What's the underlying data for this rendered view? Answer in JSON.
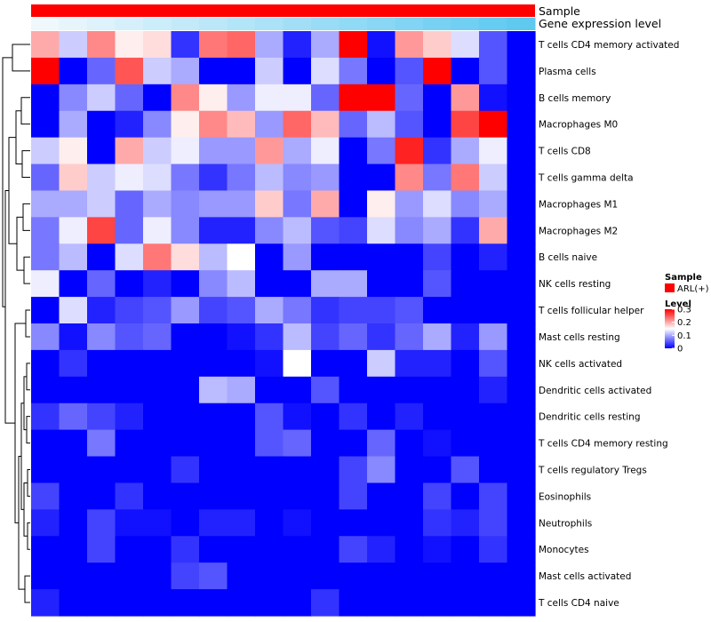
{
  "chart_data": {
    "type": "heatmap",
    "title": "",
    "rows": [
      "T cells CD4 memory activated",
      "Plasma cells",
      "B cells memory",
      "Macrophages M0",
      "T cells CD8",
      "T cells gamma delta",
      "Macrophages M1",
      "Macrophages M2",
      "B cells naive",
      "NK cells resting",
      "T cells follicular helper",
      "Mast cells resting",
      "NK cells activated",
      "Dendritic cells activated",
      "Dendritic cells resting",
      "T cells CD4 memory resting",
      "T cells regulatory  Tregs",
      "Eosinophils",
      "Neutrophils",
      "Monocytes",
      "Mast cells activated",
      "T cells CD4 naive"
    ],
    "n_columns": 18,
    "values": [
      [
        0.2,
        0.12,
        0.22,
        0.16,
        0.17,
        0.03,
        0.23,
        0.24,
        0.1,
        0.02,
        0.1,
        0.3,
        0.01,
        0.21,
        0.18,
        0.13,
        0.05,
        0.0
      ],
      [
        0.3,
        0.0,
        0.06,
        0.25,
        0.12,
        0.1,
        0.0,
        0.0,
        0.12,
        0.0,
        0.13,
        0.07,
        0.0,
        0.05,
        0.3,
        0.0,
        0.05,
        0.0
      ],
      [
        0.0,
        0.08,
        0.12,
        0.06,
        0.0,
        0.22,
        0.16,
        0.09,
        0.14,
        0.14,
        0.06,
        0.3,
        0.3,
        0.06,
        0.0,
        0.21,
        0.01,
        0.0
      ],
      [
        0.0,
        0.1,
        0.0,
        0.02,
        0.08,
        0.16,
        0.22,
        0.19,
        0.09,
        0.24,
        0.19,
        0.06,
        0.11,
        0.05,
        0.0,
        0.26,
        0.3,
        0.0
      ],
      [
        0.12,
        0.16,
        0.0,
        0.2,
        0.12,
        0.14,
        0.09,
        0.09,
        0.21,
        0.1,
        0.14,
        0.0,
        0.07,
        0.28,
        0.03,
        0.1,
        0.14,
        0.0
      ],
      [
        0.06,
        0.18,
        0.12,
        0.14,
        0.13,
        0.07,
        0.03,
        0.07,
        0.11,
        0.08,
        0.09,
        0.0,
        0.0,
        0.22,
        0.07,
        0.23,
        0.12,
        0.0
      ],
      [
        0.1,
        0.1,
        0.12,
        0.06,
        0.1,
        0.08,
        0.09,
        0.09,
        0.18,
        0.07,
        0.2,
        0.0,
        0.16,
        0.09,
        0.13,
        0.08,
        0.1,
        0.0
      ],
      [
        0.07,
        0.14,
        0.26,
        0.06,
        0.14,
        0.08,
        0.02,
        0.02,
        0.08,
        0.11,
        0.05,
        0.04,
        0.13,
        0.08,
        0.1,
        0.03,
        0.2,
        0.0
      ],
      [
        0.07,
        0.11,
        0.0,
        0.13,
        0.23,
        0.17,
        0.11,
        0.15,
        0.0,
        0.09,
        0.0,
        0.0,
        0.0,
        0.0,
        0.04,
        0.0,
        0.02,
        0.0
      ],
      [
        0.14,
        0.0,
        0.06,
        0.0,
        0.02,
        0.0,
        0.08,
        0.11,
        0.0,
        0.0,
        0.1,
        0.1,
        0.0,
        0.0,
        0.05,
        0.0,
        0.0,
        0.0
      ],
      [
        0.0,
        0.13,
        0.02,
        0.04,
        0.05,
        0.09,
        0.04,
        0.05,
        0.1,
        0.07,
        0.03,
        0.04,
        0.04,
        0.05,
        0.0,
        0.0,
        0.0,
        0.0
      ],
      [
        0.08,
        0.01,
        0.08,
        0.05,
        0.06,
        0.0,
        0.0,
        0.01,
        0.03,
        0.11,
        0.04,
        0.06,
        0.03,
        0.06,
        0.1,
        0.02,
        0.09,
        0.0
      ],
      [
        0.0,
        0.03,
        0.0,
        0.0,
        0.0,
        0.0,
        0.0,
        0.0,
        0.01,
        0.15,
        0.0,
        0.0,
        0.12,
        0.02,
        0.02,
        0.0,
        0.05,
        0.0
      ],
      [
        0.0,
        0.0,
        0.0,
        0.0,
        0.0,
        0.0,
        0.11,
        0.1,
        0.0,
        0.0,
        0.05,
        0.0,
        0.0,
        0.0,
        0.0,
        0.0,
        0.02,
        0.0
      ],
      [
        0.03,
        0.06,
        0.04,
        0.02,
        0.0,
        0.0,
        0.0,
        0.0,
        0.05,
        0.01,
        0.0,
        0.03,
        0.0,
        0.02,
        0.0,
        0.0,
        0.0,
        0.0
      ],
      [
        0.0,
        0.0,
        0.07,
        0.0,
        0.0,
        0.0,
        0.0,
        0.0,
        0.05,
        0.06,
        0.0,
        0.0,
        0.06,
        0.0,
        0.01,
        0.0,
        0.0,
        0.0
      ],
      [
        0.0,
        0.0,
        0.0,
        0.0,
        0.0,
        0.03,
        0.0,
        0.0,
        0.0,
        0.0,
        0.0,
        0.04,
        0.08,
        0.0,
        0.0,
        0.05,
        0.0,
        0.0
      ],
      [
        0.04,
        0.0,
        0.0,
        0.03,
        0.0,
        0.0,
        0.0,
        0.0,
        0.0,
        0.0,
        0.0,
        0.04,
        0.0,
        0.0,
        0.04,
        0.0,
        0.04,
        0.0
      ],
      [
        0.02,
        0.0,
        0.04,
        0.01,
        0.01,
        0.0,
        0.02,
        0.02,
        0.0,
        0.01,
        0.0,
        0.0,
        0.0,
        0.0,
        0.03,
        0.02,
        0.04,
        0.0
      ],
      [
        0.0,
        0.0,
        0.04,
        0.0,
        0.0,
        0.03,
        0.0,
        0.0,
        0.0,
        0.0,
        0.0,
        0.04,
        0.02,
        0.0,
        0.01,
        0.0,
        0.03,
        0.0
      ],
      [
        0.0,
        0.0,
        0.0,
        0.0,
        0.0,
        0.04,
        0.05,
        0.0,
        0.0,
        0.0,
        0.0,
        0.0,
        0.0,
        0.0,
        0.0,
        0.0,
        0.0,
        0.0
      ],
      [
        0.02,
        0.0,
        0.0,
        0.0,
        0.0,
        0.0,
        0.0,
        0.0,
        0.0,
        0.0,
        0.03,
        0.0,
        0.0,
        0.0,
        0.0,
        0.0,
        0.0,
        0.0
      ]
    ],
    "column_annotations": [
      {
        "name": "Sample",
        "color": "#ff0000"
      },
      {
        "name": "Gene expression level",
        "gradient": [
          "#eef8fd",
          "#5fc9f0"
        ]
      }
    ],
    "color_scale": {
      "colors": [
        "#0000ff",
        "#ffffff",
        "#ff0000"
      ],
      "breaks": [
        0,
        0.15,
        0.3
      ],
      "range": [
        0,
        0.3
      ]
    },
    "legend": {
      "sample_title": "Sample",
      "sample_entry": "ARL(+)",
      "sample_color": "#ff0000",
      "level_title": "Level",
      "level_ticks": [
        "0.3",
        "0.2",
        "0.1",
        "0"
      ],
      "level_tick_values": [
        0.3,
        0.2,
        0.1,
        0.0
      ],
      "placement": "right"
    },
    "dendrogram": "rows"
  }
}
